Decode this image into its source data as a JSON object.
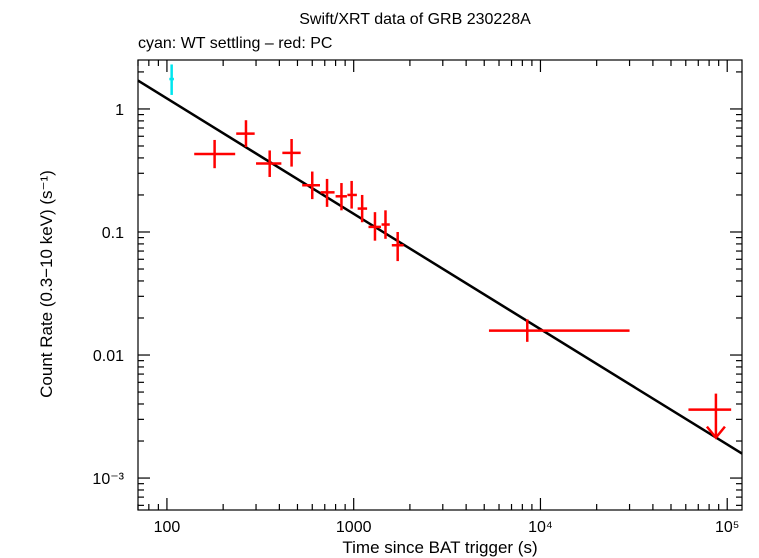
{
  "chart_data": {
    "type": "scatter",
    "title": "Swift/XRT data of GRB 230228A",
    "subtitle": "cyan: WT settling – red: PC",
    "xlabel": "Time since BAT trigger (s)",
    "ylabel": "Count Rate (0.3−10 keV) (s⁻¹)",
    "xscale": "log",
    "yscale": "log",
    "xlim": [
      70,
      120000
    ],
    "ylim": [
      0.00055,
      2.5
    ],
    "x_ticks": [
      {
        "value": 100,
        "label": "100"
      },
      {
        "value": 1000,
        "label": "1000"
      },
      {
        "value": 10000,
        "label": "10⁴"
      },
      {
        "value": 100000,
        "label": "10⁵"
      }
    ],
    "y_ticks": [
      {
        "value": 0.001,
        "label": "10⁻³"
      },
      {
        "value": 0.01,
        "label": "0.01"
      },
      {
        "value": 0.1,
        "label": "0.1"
      },
      {
        "value": 1,
        "label": "1"
      }
    ],
    "series": [
      {
        "name": "WT settling",
        "color": "#00e5ee",
        "points": [
          {
            "x": 106,
            "y": 1.75,
            "xlo": 103,
            "xhi": 109,
            "ylo": 1.3,
            "yhi": 2.3
          }
        ]
      },
      {
        "name": "PC",
        "color": "#ff0000",
        "points": [
          {
            "x": 180,
            "y": 0.43,
            "xlo": 140,
            "xhi": 232,
            "ylo": 0.33,
            "yhi": 0.56
          },
          {
            "x": 265,
            "y": 0.63,
            "xlo": 235,
            "xhi": 295,
            "ylo": 0.49,
            "yhi": 0.81
          },
          {
            "x": 355,
            "y": 0.36,
            "xlo": 300,
            "xhi": 410,
            "ylo": 0.28,
            "yhi": 0.46
          },
          {
            "x": 465,
            "y": 0.44,
            "xlo": 415,
            "xhi": 520,
            "ylo": 0.34,
            "yhi": 0.57
          },
          {
            "x": 600,
            "y": 0.24,
            "xlo": 530,
            "xhi": 660,
            "ylo": 0.185,
            "yhi": 0.31
          },
          {
            "x": 720,
            "y": 0.21,
            "xlo": 665,
            "xhi": 790,
            "ylo": 0.16,
            "yhi": 0.27
          },
          {
            "x": 860,
            "y": 0.195,
            "xlo": 800,
            "xhi": 920,
            "ylo": 0.15,
            "yhi": 0.25
          },
          {
            "x": 975,
            "y": 0.2,
            "xlo": 925,
            "xhi": 1040,
            "ylo": 0.155,
            "yhi": 0.26
          },
          {
            "x": 1110,
            "y": 0.155,
            "xlo": 1050,
            "xhi": 1180,
            "ylo": 0.12,
            "yhi": 0.2
          },
          {
            "x": 1300,
            "y": 0.11,
            "xlo": 1200,
            "xhi": 1400,
            "ylo": 0.085,
            "yhi": 0.145
          },
          {
            "x": 1480,
            "y": 0.115,
            "xlo": 1410,
            "xhi": 1560,
            "ylo": 0.088,
            "yhi": 0.15
          },
          {
            "x": 1720,
            "y": 0.078,
            "xlo": 1600,
            "xhi": 1850,
            "ylo": 0.058,
            "yhi": 0.1
          },
          {
            "x": 8500,
            "y": 0.0158,
            "xlo": 5300,
            "xhi": 30000,
            "ylo": 0.0128,
            "yhi": 0.0195
          }
        ]
      }
    ],
    "upper_limit": {
      "x": 87000,
      "y": 0.0036,
      "xlo": 62000,
      "xhi": 105000,
      "color": "#ff0000"
    },
    "fit_line": {
      "x": [
        70,
        120000
      ],
      "y": [
        1.7,
        0.00158
      ],
      "color": "#000000"
    }
  }
}
